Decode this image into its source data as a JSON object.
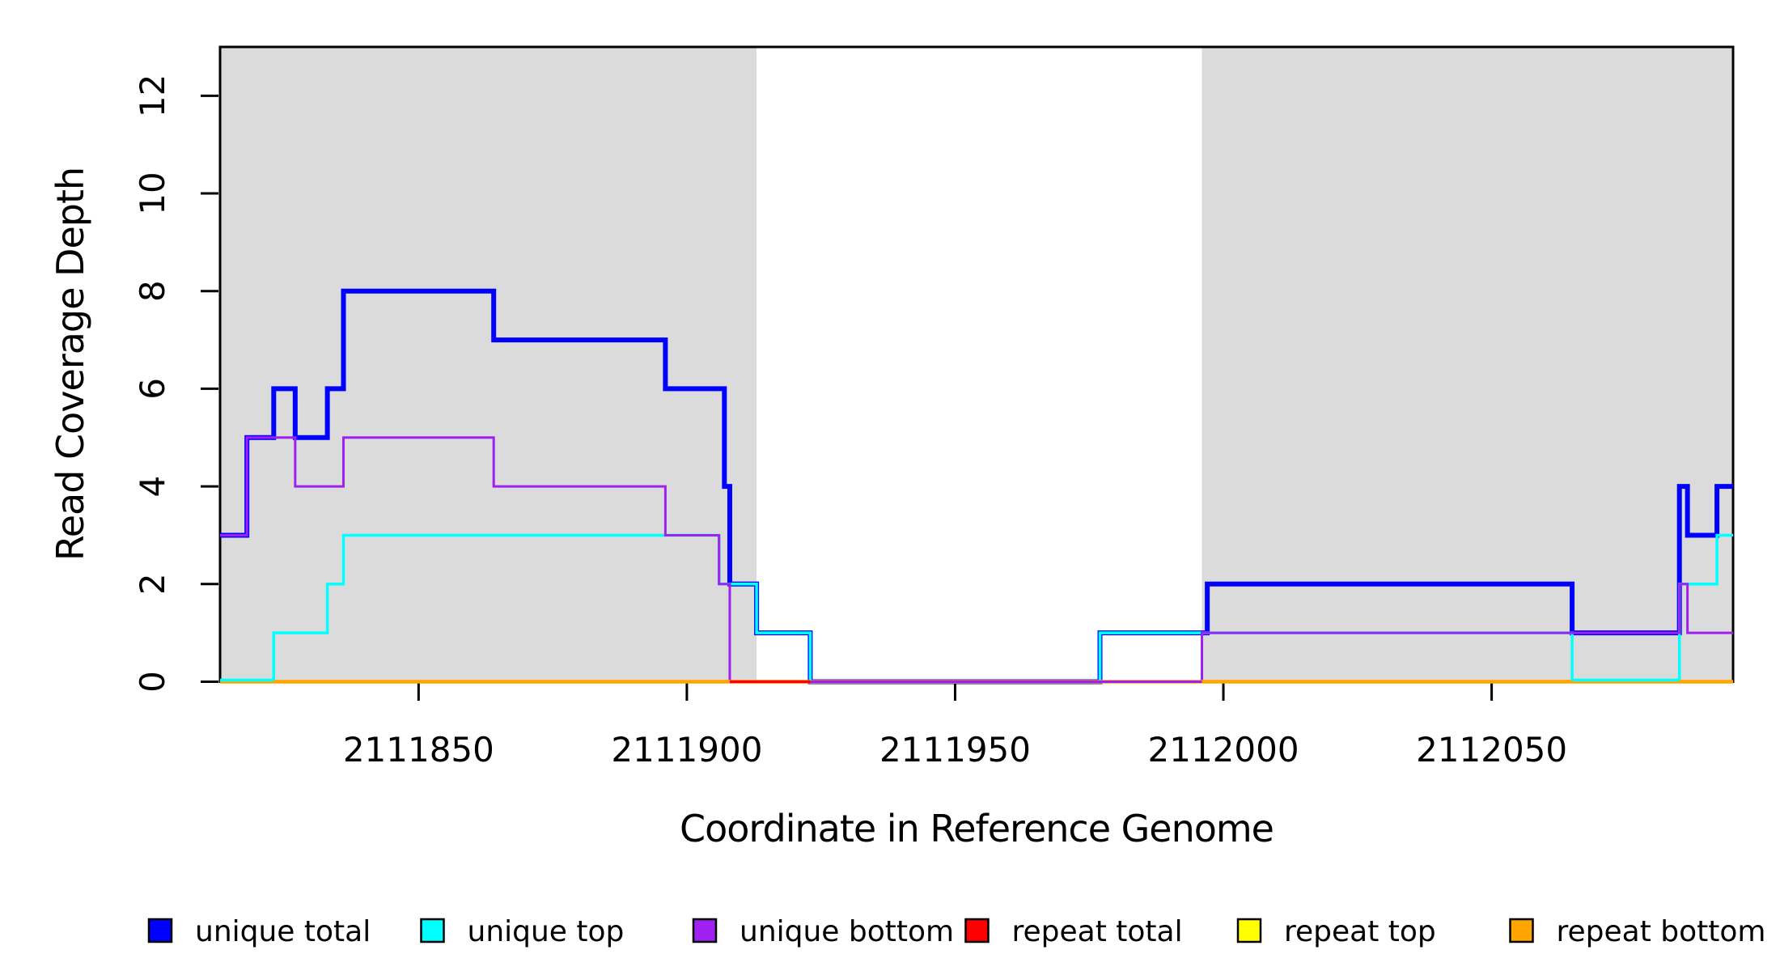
{
  "chart_data": {
    "type": "line",
    "subtype": "step-coverage-plot",
    "title": "",
    "xlabel": "Coordinate in Reference Genome",
    "ylabel": "Read Coverage Depth",
    "xlim": [
      2111813,
      2112095
    ],
    "ylim": [
      0,
      13
    ],
    "x_ticks": [
      2111850,
      2111900,
      2111950,
      2112000,
      2112050
    ],
    "y_ticks": [
      0,
      2,
      4,
      6,
      8,
      10,
      12
    ],
    "grid": false,
    "axis_color": "#000000",
    "text_color": "#000000",
    "plot_background": "#ffffff",
    "shaded_regions": [
      {
        "name": "left-shaded-region",
        "x_start": 2111813,
        "x_end": 2111913,
        "color": "#dbdbdb"
      },
      {
        "name": "right-shaded-region",
        "x_start": 2111996,
        "x_end": 2112095,
        "color": "#dbdbdb"
      }
    ],
    "series": [
      {
        "name": "unique total",
        "color": "#0000ff",
        "line_width": 6,
        "steps": [
          [
            2111813,
            3
          ],
          [
            2111818,
            5
          ],
          [
            2111823,
            6
          ],
          [
            2111827,
            5
          ],
          [
            2111833,
            6
          ],
          [
            2111836,
            8
          ],
          [
            2111864,
            7
          ],
          [
            2111896,
            6
          ],
          [
            2111907,
            4
          ],
          [
            2111908,
            2
          ],
          [
            2111913,
            1
          ],
          [
            2111923,
            0
          ],
          [
            2111977,
            1
          ],
          [
            2111997,
            2
          ],
          [
            2112065,
            1
          ],
          [
            2112085,
            4
          ],
          [
            2112086.5,
            3
          ],
          [
            2112092,
            4
          ],
          [
            2112095,
            4
          ]
        ]
      },
      {
        "name": "unique top",
        "color": "#00ffff",
        "line_width": 3.5,
        "steps": [
          [
            2111813,
            0
          ],
          [
            2111823,
            1
          ],
          [
            2111833,
            2
          ],
          [
            2111836,
            3
          ],
          [
            2111906,
            2
          ],
          [
            2111913,
            1
          ],
          [
            2111923,
            0
          ],
          [
            2111977,
            1
          ],
          [
            2112065,
            0
          ],
          [
            2112085,
            2
          ],
          [
            2112092,
            3
          ],
          [
            2112095,
            3
          ]
        ]
      },
      {
        "name": "unique bottom",
        "color": "#a020f0",
        "line_width": 3,
        "steps": [
          [
            2111813,
            3
          ],
          [
            2111818,
            5
          ],
          [
            2111827,
            4
          ],
          [
            2111836,
            5
          ],
          [
            2111864,
            4
          ],
          [
            2111896,
            3
          ],
          [
            2111906,
            2
          ],
          [
            2111908,
            0
          ],
          [
            2111996,
            1
          ],
          [
            2112085,
            2
          ],
          [
            2112086.5,
            1
          ],
          [
            2112095,
            1
          ]
        ]
      },
      {
        "name": "repeat total",
        "color": "#ff0000",
        "line_width": 3.5,
        "steps": [
          [
            2111813,
            0
          ],
          [
            2112095,
            0
          ]
        ]
      },
      {
        "name": "repeat top",
        "color": "#ffff00",
        "line_width": 3,
        "steps": [
          [
            2111813,
            0
          ],
          [
            2112095,
            0
          ]
        ]
      },
      {
        "name": "repeat bottom",
        "color": "#ffa500",
        "line_width": 4.5,
        "steps": [
          [
            2111813,
            0
          ],
          [
            2112095,
            0
          ]
        ]
      }
    ],
    "baseline_overlays": [
      {
        "color": "#ff0000",
        "x_start": 2111908,
        "x_end": 2111923,
        "lift": 0,
        "width": 3.5
      },
      {
        "color": "#a020f0",
        "x_start": 2111923,
        "x_end": 2111996,
        "lift": 0,
        "width": 3
      },
      {
        "color": "#00ffff",
        "x_start": 2111813,
        "x_end": 2111823,
        "lift": 2,
        "width": 3.5
      },
      {
        "color": "#00ffff",
        "x_start": 2112065,
        "x_end": 2112085,
        "lift": 2,
        "width": 3.5
      }
    ],
    "legend": {
      "position": "bottom",
      "entries": [
        {
          "label": "unique total",
          "color": "#0000ff"
        },
        {
          "label": "unique top",
          "color": "#00ffff"
        },
        {
          "label": "unique bottom",
          "color": "#a020f0"
        },
        {
          "label": "repeat total",
          "color": "#ff0000"
        },
        {
          "label": "repeat top",
          "color": "#ffff00"
        },
        {
          "label": "repeat bottom",
          "color": "#ffa500"
        }
      ]
    }
  }
}
